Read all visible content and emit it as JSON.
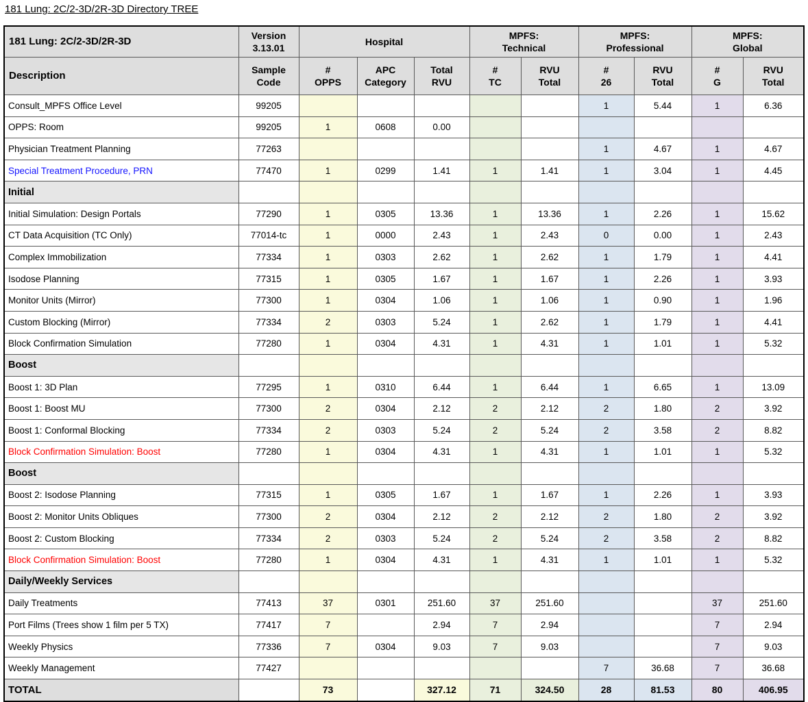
{
  "page_title": "181 Lung: 2C/2-3D/2R-3D Directory TREE",
  "colors": {
    "hospital_tint": "#FAFADC",
    "technical_tint": "#E9F0DD",
    "professional_tint": "#DBE5F0",
    "global_tint": "#E2DCEB",
    "header_gray": "#DEDEDE",
    "section_gray": "#E6E6E6",
    "link_text": "#1414FF",
    "alert_text": "#FF0000"
  },
  "table": {
    "header": {
      "title": "181 Lung: 2C/2-3D/2R-3D",
      "version": "Version\n3.13.01",
      "groups": [
        {
          "label": "Hospital"
        },
        {
          "label": "MPFS:\nTechnical"
        },
        {
          "label": "MPFS:\nProfessional"
        },
        {
          "label": "MPFS:\nGlobal"
        }
      ],
      "columns": [
        "Description",
        "Sample\nCode",
        "#\nOPPS",
        "APC\nCategory",
        "Total\nRVU",
        "#\nTC",
        "RVU\nTotal",
        "#\n26",
        "RVU\nTotal",
        "#\nG",
        "RVU\nTotal"
      ]
    },
    "rows": [
      {
        "type": "data",
        "description": "Consult_MPFS Office Level",
        "sample_code": "99205",
        "num_opps": "",
        "apc_category": "",
        "hospital_total_rvu": "",
        "num_tc": "",
        "technical_rvu_total": "",
        "num_26": "1",
        "professional_rvu_total": "5.44",
        "num_g": "1",
        "global_rvu_total": "6.36"
      },
      {
        "type": "data",
        "description": "OPPS: Room",
        "sample_code": "99205",
        "num_opps": "1",
        "apc_category": "0608",
        "hospital_total_rvu": "0.00",
        "num_tc": "",
        "technical_rvu_total": "",
        "num_26": "",
        "professional_rvu_total": "",
        "num_g": "",
        "global_rvu_total": ""
      },
      {
        "type": "data",
        "description": "Physician Treatment Planning",
        "sample_code": "77263",
        "num_opps": "",
        "apc_category": "",
        "hospital_total_rvu": "",
        "num_tc": "",
        "technical_rvu_total": "",
        "num_26": "1",
        "professional_rvu_total": "4.67",
        "num_g": "1",
        "global_rvu_total": "4.67"
      },
      {
        "type": "data",
        "style": "link",
        "description": "Special Treatment Procedure, PRN",
        "sample_code": "77470",
        "num_opps": "1",
        "apc_category": "0299",
        "hospital_total_rvu": "1.41",
        "num_tc": "1",
        "technical_rvu_total": "1.41",
        "num_26": "1",
        "professional_rvu_total": "3.04",
        "num_g": "1",
        "global_rvu_total": "4.45"
      },
      {
        "type": "section",
        "description": "Initial"
      },
      {
        "type": "data",
        "description": "Initial Simulation: Design Portals",
        "sample_code": "77290",
        "num_opps": "1",
        "apc_category": "0305",
        "hospital_total_rvu": "13.36",
        "num_tc": "1",
        "technical_rvu_total": "13.36",
        "num_26": "1",
        "professional_rvu_total": "2.26",
        "num_g": "1",
        "global_rvu_total": "15.62"
      },
      {
        "type": "data",
        "description": "CT Data Acquisition (TC Only)",
        "sample_code": "77014-tc",
        "num_opps": "1",
        "apc_category": "0000",
        "hospital_total_rvu": "2.43",
        "num_tc": "1",
        "technical_rvu_total": "2.43",
        "num_26": "0",
        "professional_rvu_total": "0.00",
        "num_g": "1",
        "global_rvu_total": "2.43"
      },
      {
        "type": "data",
        "description": "Complex Immobilization",
        "sample_code": "77334",
        "num_opps": "1",
        "apc_category": "0303",
        "hospital_total_rvu": "2.62",
        "num_tc": "1",
        "technical_rvu_total": "2.62",
        "num_26": "1",
        "professional_rvu_total": "1.79",
        "num_g": "1",
        "global_rvu_total": "4.41"
      },
      {
        "type": "data",
        "description": "Isodose Planning",
        "sample_code": "77315",
        "num_opps": "1",
        "apc_category": "0305",
        "hospital_total_rvu": "1.67",
        "num_tc": "1",
        "technical_rvu_total": "1.67",
        "num_26": "1",
        "professional_rvu_total": "2.26",
        "num_g": "1",
        "global_rvu_total": "3.93"
      },
      {
        "type": "data",
        "description": "Monitor Units (Mirror)",
        "sample_code": "77300",
        "num_opps": "1",
        "apc_category": "0304",
        "hospital_total_rvu": "1.06",
        "num_tc": "1",
        "technical_rvu_total": "1.06",
        "num_26": "1",
        "professional_rvu_total": "0.90",
        "num_g": "1",
        "global_rvu_total": "1.96"
      },
      {
        "type": "data",
        "description": "Custom Blocking (Mirror)",
        "sample_code": "77334",
        "num_opps": "2",
        "apc_category": "0303",
        "hospital_total_rvu": "5.24",
        "num_tc": "1",
        "technical_rvu_total": "2.62",
        "num_26": "1",
        "professional_rvu_total": "1.79",
        "num_g": "1",
        "global_rvu_total": "4.41"
      },
      {
        "type": "data",
        "description": "Block Confirmation Simulation",
        "sample_code": "77280",
        "num_opps": "1",
        "apc_category": "0304",
        "hospital_total_rvu": "4.31",
        "num_tc": "1",
        "technical_rvu_total": "4.31",
        "num_26": "1",
        "professional_rvu_total": "1.01",
        "num_g": "1",
        "global_rvu_total": "5.32"
      },
      {
        "type": "section",
        "description": "Boost"
      },
      {
        "type": "data",
        "description": "Boost 1: 3D Plan",
        "sample_code": "77295",
        "num_opps": "1",
        "apc_category": "0310",
        "hospital_total_rvu": "6.44",
        "num_tc": "1",
        "technical_rvu_total": "6.44",
        "num_26": "1",
        "professional_rvu_total": "6.65",
        "num_g": "1",
        "global_rvu_total": "13.09"
      },
      {
        "type": "data",
        "description": "Boost 1: Boost MU",
        "sample_code": "77300",
        "num_opps": "2",
        "apc_category": "0304",
        "hospital_total_rvu": "2.12",
        "num_tc": "2",
        "technical_rvu_total": "2.12",
        "num_26": "2",
        "professional_rvu_total": "1.80",
        "num_g": "2",
        "global_rvu_total": "3.92"
      },
      {
        "type": "data",
        "description": "Boost 1: Conformal Blocking",
        "sample_code": "77334",
        "num_opps": "2",
        "apc_category": "0303",
        "hospital_total_rvu": "5.24",
        "num_tc": "2",
        "technical_rvu_total": "5.24",
        "num_26": "2",
        "professional_rvu_total": "3.58",
        "num_g": "2",
        "global_rvu_total": "8.82"
      },
      {
        "type": "data",
        "style": "alert",
        "description": "Block Confirmation Simulation: Boost",
        "sample_code": "77280",
        "num_opps": "1",
        "apc_category": "0304",
        "hospital_total_rvu": "4.31",
        "num_tc": "1",
        "technical_rvu_total": "4.31",
        "num_26": "1",
        "professional_rvu_total": "1.01",
        "num_g": "1",
        "global_rvu_total": "5.32"
      },
      {
        "type": "section",
        "description": "Boost"
      },
      {
        "type": "data",
        "description": "Boost 2: Isodose Planning",
        "sample_code": "77315",
        "num_opps": "1",
        "apc_category": "0305",
        "hospital_total_rvu": "1.67",
        "num_tc": "1",
        "technical_rvu_total": "1.67",
        "num_26": "1",
        "professional_rvu_total": "2.26",
        "num_g": "1",
        "global_rvu_total": "3.93"
      },
      {
        "type": "data",
        "description": "Boost 2: Monitor Units Obliques",
        "sample_code": "77300",
        "num_opps": "2",
        "apc_category": "0304",
        "hospital_total_rvu": "2.12",
        "num_tc": "2",
        "technical_rvu_total": "2.12",
        "num_26": "2",
        "professional_rvu_total": "1.80",
        "num_g": "2",
        "global_rvu_total": "3.92"
      },
      {
        "type": "data",
        "description": "Boost 2: Custom Blocking",
        "sample_code": "77334",
        "num_opps": "2",
        "apc_category": "0303",
        "hospital_total_rvu": "5.24",
        "num_tc": "2",
        "technical_rvu_total": "5.24",
        "num_26": "2",
        "professional_rvu_total": "3.58",
        "num_g": "2",
        "global_rvu_total": "8.82"
      },
      {
        "type": "data",
        "style": "alert",
        "description": "Block Confirmation Simulation: Boost",
        "sample_code": "77280",
        "num_opps": "1",
        "apc_category": "0304",
        "hospital_total_rvu": "4.31",
        "num_tc": "1",
        "technical_rvu_total": "4.31",
        "num_26": "1",
        "professional_rvu_total": "1.01",
        "num_g": "1",
        "global_rvu_total": "5.32"
      },
      {
        "type": "section",
        "description": "Daily/Weekly Services"
      },
      {
        "type": "data",
        "description": "Daily Treatments",
        "sample_code": "77413",
        "num_opps": "37",
        "apc_category": "0301",
        "hospital_total_rvu": "251.60",
        "num_tc": "37",
        "technical_rvu_total": "251.60",
        "num_26": "",
        "professional_rvu_total": "",
        "num_g": "37",
        "global_rvu_total": "251.60"
      },
      {
        "type": "data",
        "description": "Port Films (Trees show 1 film per 5 TX)",
        "sample_code": "77417",
        "num_opps": "7",
        "apc_category": "",
        "hospital_total_rvu": "2.94",
        "num_tc": "7",
        "technical_rvu_total": "2.94",
        "num_26": "",
        "professional_rvu_total": "",
        "num_g": "7",
        "global_rvu_total": "2.94"
      },
      {
        "type": "data",
        "description": "Weekly Physics",
        "sample_code": "77336",
        "num_opps": "7",
        "apc_category": "0304",
        "hospital_total_rvu": "9.03",
        "num_tc": "7",
        "technical_rvu_total": "9.03",
        "num_26": "",
        "professional_rvu_total": "",
        "num_g": "7",
        "global_rvu_total": "9.03"
      },
      {
        "type": "data",
        "description": "Weekly Management",
        "sample_code": "77427",
        "num_opps": "",
        "apc_category": "",
        "hospital_total_rvu": "",
        "num_tc": "",
        "technical_rvu_total": "",
        "num_26": "7",
        "professional_rvu_total": "36.68",
        "num_g": "7",
        "global_rvu_total": "36.68"
      },
      {
        "type": "total",
        "description": "TOTAL",
        "sample_code": "",
        "num_opps": "73",
        "apc_category": "",
        "hospital_total_rvu": "327.12",
        "num_tc": "71",
        "technical_rvu_total": "324.50",
        "num_26": "28",
        "professional_rvu_total": "81.53",
        "num_g": "80",
        "global_rvu_total": "406.95"
      }
    ]
  }
}
